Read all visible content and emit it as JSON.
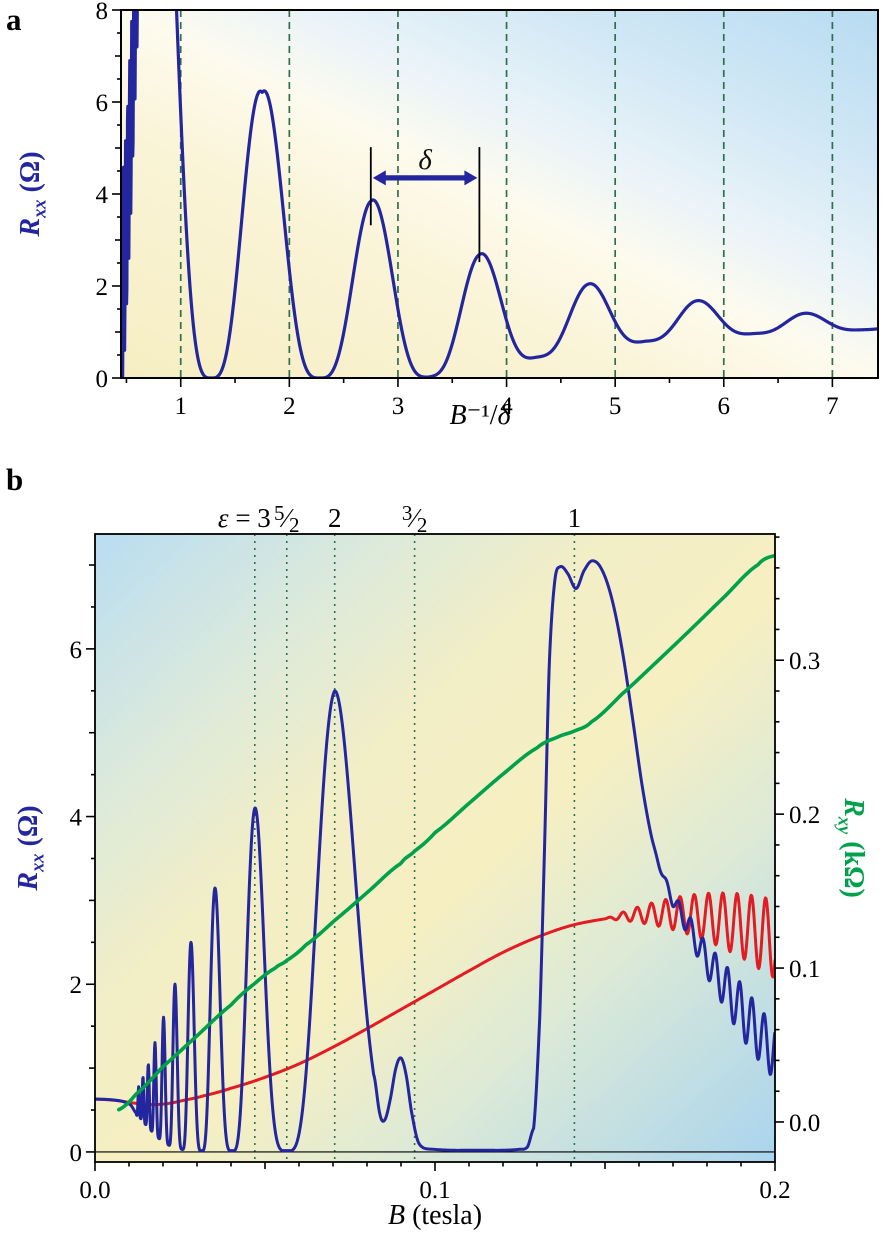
{
  "colors": {
    "navy": "#23269f",
    "red": "#e31b23",
    "green": "#00a14b",
    "dash_green": "#2f6f4f",
    "axis": "#000000"
  },
  "panel_a": {
    "letter": "a",
    "ylabel_parts": [
      "R",
      "xx",
      " (Ω)"
    ],
    "xlabel_parts": [
      "B",
      "⁻¹/",
      "δ"
    ]
  },
  "panel_b": {
    "letter": "b",
    "ylabel_left_parts": [
      "R",
      "xx",
      " (Ω)"
    ],
    "ylabel_right_parts": [
      "R",
      "xy",
      " (kΩ)"
    ],
    "xlabel_parts": [
      "B",
      " (tesla)"
    ]
  },
  "chart_data": [
    {
      "type": "line",
      "panel": "a",
      "xlabel": "B⁻¹/δ",
      "ylabel": "Rxx (Ω)",
      "xlim": [
        0.45,
        7.42
      ],
      "ylim": [
        0,
        8
      ],
      "x_ticks": [
        1,
        2,
        3,
        4,
        5,
        6,
        7
      ],
      "x_tick_labels": [
        "1",
        "2",
        "3",
        "4",
        "5",
        "6",
        "7"
      ],
      "x_minor_step": 0.5,
      "y_ticks": [
        0,
        2,
        4,
        6,
        8
      ],
      "y_tick_labels": [
        "0",
        "2",
        "4",
        "6",
        "8"
      ],
      "y_minor_step": 0.5,
      "dashed_vlines": [
        1,
        2,
        3,
        4,
        5,
        6,
        7
      ],
      "series": [
        {
          "id": "rxx",
          "axis": "left",
          "color_key": "navy",
          "model": {
            "peak_phase": 0.78,
            "period": 1.0,
            "sharpen": 1.7,
            "peak_envelope": [
              [
                0.45,
                16
              ],
              [
                0.8,
                16
              ],
              [
                1.75,
                6.3
              ],
              [
                2.75,
                3.9
              ],
              [
                3.75,
                2.72
              ],
              [
                4.75,
                2.06
              ],
              [
                5.78,
                1.68
              ],
              [
                6.8,
                1.4
              ],
              [
                7.42,
                1.25
              ]
            ],
            "trough_envelope": [
              [
                0.45,
                0
              ],
              [
                1.3,
                0
              ],
              [
                2.3,
                0
              ],
              [
                3.28,
                0.02
              ],
              [
                4.27,
                0.45
              ],
              [
                5.28,
                0.8
              ],
              [
                6.3,
                0.97
              ],
              [
                7.42,
                1.06
              ]
            ],
            "noise": {
              "x_end": 0.95,
              "amplitude": 2.3,
              "period": 0.019
            }
          },
          "peaks": [
            [
              1.75,
              6.3
            ],
            [
              2.75,
              3.9
            ],
            [
              3.75,
              2.72
            ],
            [
              4.75,
              2.06
            ],
            [
              5.78,
              1.68
            ],
            [
              6.8,
              1.4
            ]
          ]
        }
      ],
      "annotation": {
        "label": "δ",
        "x_from": 2.75,
        "x_to": 3.75,
        "y": 4.35,
        "bar_left": [
          3.32,
          5.02
        ],
        "bar_right": [
          2.52,
          5.02
        ]
      }
    },
    {
      "type": "line",
      "panel": "b",
      "xlabel": "B (tesla)",
      "ylabel_left": "Rxx (Ω)",
      "ylabel_right": "Rxy (kΩ)",
      "xlim": [
        0,
        0.2
      ],
      "ylim_left": [
        -0.12,
        7.37
      ],
      "ylim_right": [
        -0.026,
        0.382
      ],
      "x_ticks": [
        0,
        0.1,
        0.2
      ],
      "x_tick_labels": [
        "0.0",
        "0.1",
        "0.2"
      ],
      "x_mid_ticks": [
        0.05,
        0.15
      ],
      "x_minor_step": 0.01,
      "y_left_ticks": [
        0,
        2,
        4,
        6
      ],
      "y_left_tick_labels": [
        "0",
        "2",
        "4",
        "6"
      ],
      "y_left_minor_step": 0.5,
      "y_right_ticks": [
        0,
        0.1,
        0.2,
        0.3
      ],
      "y_right_tick_labels": [
        "0.0",
        "0.1",
        "0.2",
        "0.3"
      ],
      "y_right_minor_step": 0.02,
      "zero_line_y": 0,
      "epsilon_lines": [
        {
          "b": 0.047,
          "label": "ε = 3"
        },
        {
          "b": 0.0564,
          "label": "5/2"
        },
        {
          "b": 0.0705,
          "label": "2"
        },
        {
          "b": 0.094,
          "label": "3/2"
        },
        {
          "b": 0.141,
          "label": "1"
        }
      ],
      "series": [
        {
          "id": "rxx-blue",
          "axis": "left",
          "color_key": "navy",
          "start_anchors": [
            [
              0,
              0.63
            ],
            [
              0.004,
              0.625
            ],
            [
              0.008,
              0.605
            ],
            [
              0.0105,
              0.56
            ],
            [
              0.0122,
              0.46
            ]
          ],
          "model": {
            "b_fundamental": 0.141,
            "range": [
              0.0122,
              0.082
            ],
            "sharpen": 2.0,
            "peak_envelope": [
              [
                0.0122,
                0.72
              ],
              [
                0.0141,
                0.9
              ],
              [
                0.0157,
                1.05
              ],
              [
                0.0176,
                1.3
              ],
              [
                0.0201,
                1.6
              ],
              [
                0.0235,
                2.0
              ],
              [
                0.0282,
                2.5
              ],
              [
                0.0353,
                3.15
              ],
              [
                0.047,
                4.1
              ],
              [
                0.0705,
                5.5
              ],
              [
                0.082,
                5.5
              ]
            ],
            "trough_envelope": [
              [
                0.0122,
                0.44
              ],
              [
                0.0134,
                0.4
              ],
              [
                0.0148,
                0.33
              ],
              [
                0.0166,
                0.25
              ],
              [
                0.0188,
                0.16
              ],
              [
                0.0217,
                0.08
              ],
              [
                0.0256,
                0.03
              ],
              [
                0.0313,
                0.01
              ],
              [
                0.0403,
                0.01
              ],
              [
                0.0564,
                0.01
              ],
              [
                0.082,
                0.01
              ]
            ]
          },
          "mid_anchors": [
            [
              0.082,
              0.92
            ],
            [
              0.0838,
              0.45
            ],
            [
              0.0852,
              0.38
            ],
            [
              0.0868,
              0.62
            ],
            [
              0.0885,
              1.0
            ],
            [
              0.09,
              1.12
            ],
            [
              0.0915,
              0.92
            ],
            [
              0.093,
              0.5
            ],
            [
              0.0948,
              0.15
            ],
            [
              0.0965,
              0.05
            ],
            [
              0.1,
              0.03
            ],
            [
              0.105,
              0.02
            ],
            [
              0.11,
              0.02
            ],
            [
              0.115,
              0.02
            ],
            [
              0.12,
              0.02
            ],
            [
              0.1245,
              0.03
            ],
            [
              0.1272,
              0.06
            ],
            [
              0.129,
              0.28
            ]
          ],
          "main_anchors": [
            [
              0.129,
              0.28
            ],
            [
              0.1308,
              1.6
            ],
            [
              0.1322,
              3.6
            ],
            [
              0.1336,
              5.8
            ],
            [
              0.1352,
              6.8
            ],
            [
              0.1368,
              6.98
            ],
            [
              0.139,
              6.9
            ],
            [
              0.1415,
              6.72
            ],
            [
              0.1438,
              6.93
            ],
            [
              0.1462,
              7.05
            ],
            [
              0.149,
              6.95
            ],
            [
              0.152,
              6.6
            ],
            [
              0.155,
              6.0
            ],
            [
              0.158,
              5.2
            ],
            [
              0.161,
              4.35
            ],
            [
              0.164,
              3.7
            ],
            [
              0.167,
              3.3
            ],
            [
              0.17,
              3.0
            ],
            [
              0.1745,
              2.7
            ],
            [
              0.179,
              2.35
            ],
            [
              0.184,
              2.05
            ],
            [
              0.189,
              1.75
            ],
            [
              0.1945,
              1.45
            ],
            [
              0.2,
              1.2
            ]
          ],
          "tail_osc": {
            "start": 0.1635,
            "amp_slope": 12,
            "amp_max": 0.32,
            "period": 0.0036
          }
        },
        {
          "id": "rxx-red",
          "axis": "left",
          "color_key": "red",
          "anchors": [
            [
              0,
              0.63
            ],
            [
              0.006,
              0.615
            ],
            [
              0.011,
              0.585
            ],
            [
              0.016,
              0.565
            ],
            [
              0.021,
              0.575
            ],
            [
              0.026,
              0.615
            ],
            [
              0.032,
              0.67
            ],
            [
              0.04,
              0.76
            ],
            [
              0.05,
              0.89
            ],
            [
              0.06,
              1.05
            ],
            [
              0.07,
              1.25
            ],
            [
              0.08,
              1.47
            ],
            [
              0.09,
              1.7
            ],
            [
              0.1,
              1.93
            ],
            [
              0.11,
              2.16
            ],
            [
              0.12,
              2.38
            ],
            [
              0.13,
              2.56
            ],
            [
              0.14,
              2.7
            ],
            [
              0.15,
              2.78
            ],
            [
              0.16,
              2.83
            ],
            [
              0.17,
              2.84
            ],
            [
              0.18,
              2.8
            ],
            [
              0.19,
              2.7
            ],
            [
              0.2,
              2.55
            ]
          ],
          "tail_osc": {
            "start": 0.15,
            "amp_slope": 9.5,
            "amp_max": 0.5,
            "period": 0.0042
          }
        },
        {
          "id": "rxy-green",
          "axis": "right",
          "color_key": "green",
          "anchors": [
            [
              0.007,
              0.008
            ],
            [
              0.012,
              0.018
            ],
            [
              0.02,
              0.036
            ],
            [
              0.03,
              0.056
            ],
            [
              0.04,
              0.076
            ],
            [
              0.047,
              0.09
            ],
            [
              0.053,
              0.1
            ],
            [
              0.0564,
              0.105
            ],
            [
              0.062,
              0.115
            ],
            [
              0.0705,
              0.131
            ],
            [
              0.08,
              0.149
            ],
            [
              0.09,
              0.168
            ],
            [
              0.094,
              0.176
            ],
            [
              0.1,
              0.188
            ],
            [
              0.11,
              0.207
            ],
            [
              0.12,
              0.226
            ],
            [
              0.13,
              0.243
            ],
            [
              0.136,
              0.25
            ],
            [
              0.141,
              0.254
            ],
            [
              0.146,
              0.26
            ],
            [
              0.155,
              0.278
            ],
            [
              0.165,
              0.2985
            ],
            [
              0.175,
              0.3195
            ],
            [
              0.185,
              0.341
            ],
            [
              0.195,
              0.362
            ],
            [
              0.2,
              0.368
            ]
          ]
        }
      ]
    }
  ]
}
